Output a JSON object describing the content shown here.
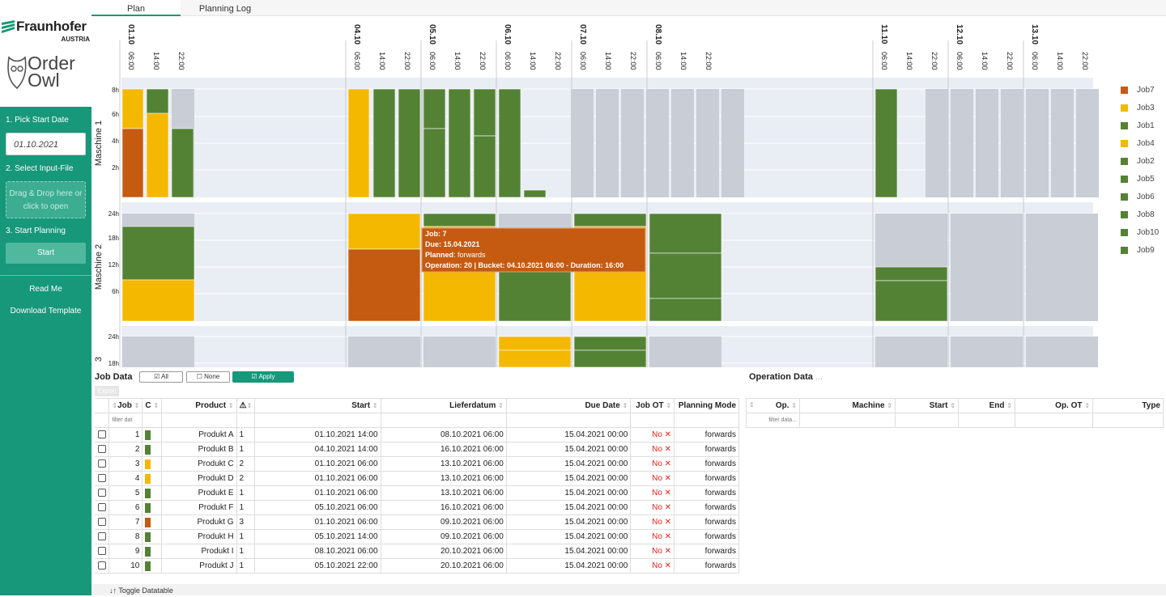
{
  "brand": {
    "company": "Fraunhofer",
    "country": "AUSTRIA",
    "app_line1": "Order",
    "app_line2": "Owl"
  },
  "sidebar": {
    "step1": "1. Pick Start Date",
    "date_value": "01.10.2021",
    "step2": "2. Select Input-File",
    "drop_line1": "Drag & Drop here or",
    "drop_line2": "click to open",
    "step3": "3. Start Planning",
    "start_label": "Start",
    "read_me": "Read Me",
    "download": "Download Template"
  },
  "tabs": [
    {
      "label": "Plan"
    },
    {
      "label": "Planning Log"
    }
  ],
  "timeline": {
    "headers": [
      {
        "date": "01.10",
        "times": [
          "06:00",
          "14:00",
          "22:00"
        ]
      },
      {
        "date": "04.10",
        "times": [
          "06:00",
          "14:00",
          "22:00"
        ]
      },
      {
        "date": "05.10",
        "times": [
          "06:00",
          "14:00",
          "22:00"
        ]
      },
      {
        "date": "06.10",
        "times": [
          "06:00",
          "14:00",
          "22:00"
        ]
      },
      {
        "date": "07.10",
        "times": [
          "06:00",
          "14:00",
          "22:00"
        ]
      },
      {
        "date": "08.10",
        "times": [
          "06:00",
          "14:00",
          "22:00"
        ]
      },
      {
        "date": "11.10",
        "times": [
          "06:00",
          "14:00",
          "22:00"
        ]
      },
      {
        "date": "12.10",
        "times": [
          "06:00",
          "14:00",
          "22:00"
        ]
      },
      {
        "date": "13.10",
        "times": [
          "06:00",
          "14:00",
          "22:00"
        ]
      }
    ],
    "machines": [
      {
        "label": "Maschine 1",
        "ticks": [
          "8h",
          "6h",
          "4h",
          "2h"
        ]
      },
      {
        "label": "Maschine 2",
        "ticks": [
          "24h",
          "18h",
          "12h",
          "6h"
        ]
      },
      {
        "label": "3",
        "ticks": [
          "24h",
          "18h"
        ]
      }
    ]
  },
  "tooltip": {
    "l1": "Job: 7",
    "l2": "Due: 15.04.2021",
    "l3_key": "Planned",
    "l3_val": ": forwards",
    "l4": "Operation: 20 | Bucket: 04.10.2021 06:00 - Duration: 16:00"
  },
  "legend": [
    {
      "label": "Job7",
      "color": "#c55a11"
    },
    {
      "label": "Job3",
      "color": "#f5b800"
    },
    {
      "label": "Job1",
      "color": "#548235"
    },
    {
      "label": "Job4",
      "color": "#f5b800"
    },
    {
      "label": "Job2",
      "color": "#548235"
    },
    {
      "label": "Job5",
      "color": "#548235"
    },
    {
      "label": "Job6",
      "color": "#548235"
    },
    {
      "label": "Job8",
      "color": "#548235"
    },
    {
      "label": "Job10",
      "color": "#548235"
    },
    {
      "label": "Job9",
      "color": "#548235"
    }
  ],
  "job_data": {
    "title": "Job Data",
    "all_label": "☑ All",
    "none_label": "☐ None",
    "apply_label": "☑ Apply",
    "export_label": "Export",
    "columns": [
      "Job",
      "C",
      "Product",
      "",
      "Start",
      "Lieferdatum",
      "Due Date",
      "Job OT",
      "Planning Mode"
    ],
    "filter_placeholder": "filter dat",
    "rows": [
      {
        "job": "1",
        "color": "#548235",
        "product": "Produkt A",
        "n": "1",
        "start": "01.10.2021 14:00",
        "liefer": "08.10.2021 06:00",
        "due": "15.04.2021 00:00",
        "ot": "No ✕",
        "mode": "forwards"
      },
      {
        "job": "2",
        "color": "#548235",
        "product": "Produkt B",
        "n": "1",
        "start": "04.10.2021 14:00",
        "liefer": "16.10.2021 06:00",
        "due": "15.04.2021 00:00",
        "ot": "No ✕",
        "mode": "forwards"
      },
      {
        "job": "3",
        "color": "#f5b800",
        "product": "Produkt C",
        "n": "2",
        "start": "01.10.2021 06:00",
        "liefer": "13.10.2021 06:00",
        "due": "15.04.2021 00:00",
        "ot": "No ✕",
        "mode": "forwards"
      },
      {
        "job": "4",
        "color": "#f5b800",
        "product": "Produkt D",
        "n": "2",
        "start": "01.10.2021 06:00",
        "liefer": "13.10.2021 06:00",
        "due": "15.04.2021 00:00",
        "ot": "No ✕",
        "mode": "forwards"
      },
      {
        "job": "5",
        "color": "#548235",
        "product": "Produkt E",
        "n": "1",
        "start": "01.10.2021 06:00",
        "liefer": "13.10.2021 06:00",
        "due": "15.04.2021 00:00",
        "ot": "No ✕",
        "mode": "forwards"
      },
      {
        "job": "6",
        "color": "#548235",
        "product": "Produkt F",
        "n": "1",
        "start": "05.10.2021 06:00",
        "liefer": "16.10.2021 06:00",
        "due": "15.04.2021 00:00",
        "ot": "No ✕",
        "mode": "forwards"
      },
      {
        "job": "7",
        "color": "#c55a11",
        "product": "Produkt G",
        "n": "3",
        "start": "01.10.2021 06:00",
        "liefer": "09.10.2021 06:00",
        "due": "15.04.2021 00:00",
        "ot": "No ✕",
        "mode": "forwards"
      },
      {
        "job": "8",
        "color": "#548235",
        "product": "Produkt H",
        "n": "1",
        "start": "05.10.2021 14:00",
        "liefer": "09.10.2021 06:00",
        "due": "15.04.2021 00:00",
        "ot": "No ✕",
        "mode": "forwards"
      },
      {
        "job": "9",
        "color": "#548235",
        "product": "Produkt I",
        "n": "1",
        "start": "08.10.2021 06:00",
        "liefer": "20.10.2021 06:00",
        "due": "15.04.2021 00:00",
        "ot": "No ✕",
        "mode": "forwards"
      },
      {
        "job": "10",
        "color": "#548235",
        "product": "Produkt J",
        "n": "1",
        "start": "05.10.2021 22:00",
        "liefer": "20.10.2021 06:00",
        "due": "15.04.2021 00:00",
        "ot": "No ✕",
        "mode": "forwards"
      }
    ]
  },
  "op_data": {
    "title": "Operation Data",
    "title_suffix": "...",
    "columns": [
      "Op.",
      "Machine",
      "Start",
      "End",
      "Op. OT",
      "Type"
    ],
    "filter_placeholder": "filter data..."
  },
  "toggle_label": "↓↑ Toggle Datatable",
  "colors": {
    "green": "#548235",
    "yellow": "#f5b800",
    "orange": "#c55a11",
    "accent": "#17987a"
  }
}
